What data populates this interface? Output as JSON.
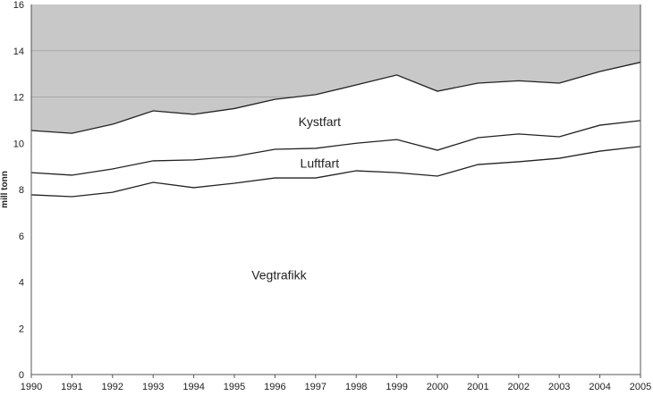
{
  "chart_data": {
    "type": "area",
    "stacked": true,
    "title": "",
    "xlabel": "",
    "ylabel": "mill tonn",
    "ylim": [
      0,
      16
    ],
    "yticks": [
      0,
      2,
      4,
      6,
      8,
      10,
      12,
      14,
      16
    ],
    "grid": true,
    "background_above_stack": "#c8c8c8",
    "categories": [
      "1990",
      "1991",
      "1992",
      "1993",
      "1994",
      "1995",
      "1996",
      "1997",
      "1998",
      "1999",
      "2000",
      "2001",
      "2002",
      "2003",
      "2004",
      "2005"
    ],
    "series": [
      {
        "name": "Vegtrafikk",
        "values": [
          7.77,
          7.69,
          7.88,
          8.31,
          8.08,
          8.27,
          8.5,
          8.5,
          8.81,
          8.73,
          8.58,
          9.08,
          9.2,
          9.35,
          9.66,
          9.86
        ]
      },
      {
        "name": "Luftfart",
        "values": [
          0.96,
          0.93,
          1.01,
          0.93,
          1.2,
          1.16,
          1.24,
          1.28,
          1.19,
          1.43,
          1.12,
          1.16,
          1.2,
          0.93,
          1.12,
          1.12
        ]
      },
      {
        "name": "Kystfart",
        "values": [
          1.82,
          1.81,
          1.93,
          2.16,
          1.97,
          2.07,
          2.16,
          2.32,
          2.52,
          2.79,
          2.55,
          2.36,
          2.3,
          2.32,
          2.32,
          2.52
        ]
      }
    ]
  }
}
